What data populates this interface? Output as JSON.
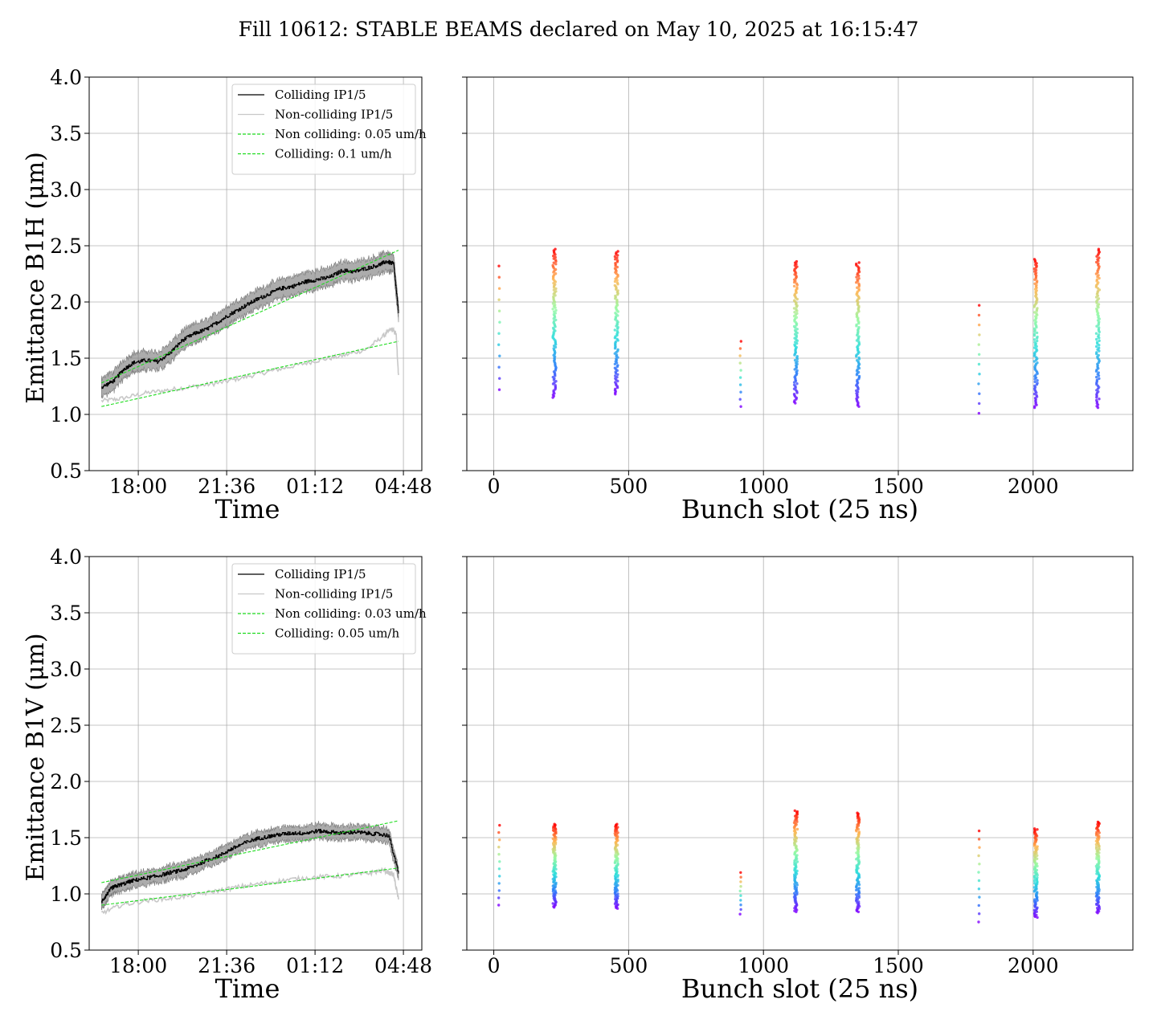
{
  "figure": {
    "title": "Fill 10612: STABLE BEAMS declared on May 10, 2025 at 16:15:47"
  },
  "colors": {
    "colliding": "#000000",
    "colliding_band": "#7f7f7f",
    "non_colliding": "#c8c8c8",
    "fit": "#1fdc1f",
    "grid": "#b0b0b0"
  },
  "chart_data": [
    {
      "id": "b1h-time",
      "type": "line",
      "xlabel": "Time",
      "ylabel": "Emittance B1H (μm)",
      "x_ticks": [
        "18:00",
        "21:36",
        "01:12",
        "04:48"
      ],
      "x_tick_hours": [
        1.2,
        4.8,
        8.4,
        12.0
      ],
      "xlim_hours": [
        -0.8,
        12.75
      ],
      "ylim": [
        0.5,
        4.0
      ],
      "y_ticks": [
        "0.5",
        "1.0",
        "1.5",
        "2.0",
        "2.5",
        "3.0",
        "3.5",
        "4.0"
      ],
      "grid": true,
      "legend_position": "upper-right",
      "legend": [
        "Colliding IP1/5",
        "Non-colliding IP1/5",
        "Non colliding: 0.05 um/h",
        "Colliding: 0.1 um/h"
      ],
      "series": [
        {
          "name": "Colliding IP1/5",
          "style": "colliding",
          "band_halfwidth": 0.08,
          "x": [
            -0.3,
            0.2,
            0.6,
            1.0,
            1.5,
            2.0,
            2.5,
            3.0,
            3.5,
            4.0,
            4.5,
            5.0,
            5.5,
            6.0,
            6.5,
            7.0,
            7.5,
            8.0,
            8.5,
            9.0,
            9.5,
            10.0,
            10.5,
            11.0,
            11.3,
            11.6,
            11.8
          ],
          "y": [
            1.24,
            1.3,
            1.4,
            1.46,
            1.48,
            1.47,
            1.55,
            1.66,
            1.72,
            1.76,
            1.83,
            1.9,
            1.96,
            2.02,
            2.07,
            2.12,
            2.14,
            2.18,
            2.2,
            2.22,
            2.28,
            2.27,
            2.3,
            2.33,
            2.36,
            2.34,
            1.9
          ]
        },
        {
          "name": "Non-colliding IP1/5",
          "style": "non_colliding",
          "x": [
            -0.3,
            0.5,
            1.5,
            2.5,
            3.5,
            4.5,
            5.5,
            6.5,
            7.5,
            8.5,
            9.5,
            10.5,
            11.2,
            11.5,
            11.7,
            11.8
          ],
          "y": [
            1.12,
            1.14,
            1.19,
            1.22,
            1.25,
            1.28,
            1.33,
            1.38,
            1.43,
            1.48,
            1.52,
            1.58,
            1.7,
            1.76,
            1.72,
            1.35
          ]
        },
        {
          "name": "Non colliding: 0.05 um/h",
          "style": "fit",
          "x": [
            -0.3,
            11.8
          ],
          "y": [
            1.07,
            1.65
          ]
        },
        {
          "name": "Colliding: 0.1 um/h",
          "style": "fit",
          "x": [
            -0.3,
            11.8
          ],
          "y": [
            1.28,
            2.46
          ]
        }
      ]
    },
    {
      "id": "b1h-bunch",
      "type": "scatter",
      "xlabel": "Bunch slot (25 ns)",
      "xlim": [
        -100,
        2370
      ],
      "ylim": [
        0.5,
        4.0
      ],
      "x_ticks": [
        0,
        500,
        1000,
        1500,
        2000
      ],
      "y_ticks": [
        0.5,
        1.0,
        1.5,
        2.0,
        2.5,
        3.0,
        3.5,
        4.0
      ],
      "grid": true,
      "color_scale": "rainbow",
      "clusters": [
        {
          "x": 20,
          "width": 4,
          "ymin": 1.22,
          "ymax": 2.32,
          "count": 12
        },
        {
          "x": 225,
          "width": 12,
          "ymin": 1.15,
          "ymax": 2.47,
          "count": 110
        },
        {
          "x": 455,
          "width": 12,
          "ymin": 1.18,
          "ymax": 2.45,
          "count": 110
        },
        {
          "x": 915,
          "width": 4,
          "ymin": 1.07,
          "ymax": 1.65,
          "count": 10
        },
        {
          "x": 1120,
          "width": 12,
          "ymin": 1.1,
          "ymax": 2.36,
          "count": 110
        },
        {
          "x": 1350,
          "width": 12,
          "ymin": 1.07,
          "ymax": 2.35,
          "count": 110
        },
        {
          "x": 1800,
          "width": 4,
          "ymin": 1.01,
          "ymax": 1.97,
          "count": 12
        },
        {
          "x": 2010,
          "width": 12,
          "ymin": 1.06,
          "ymax": 2.38,
          "count": 110
        },
        {
          "x": 2240,
          "width": 12,
          "ymin": 1.06,
          "ymax": 2.47,
          "count": 110
        }
      ]
    },
    {
      "id": "b1v-time",
      "type": "line",
      "xlabel": "Time",
      "ylabel": "Emittance B1V (μm)",
      "x_ticks": [
        "18:00",
        "21:36",
        "01:12",
        "04:48"
      ],
      "x_tick_hours": [
        1.2,
        4.8,
        8.4,
        12.0
      ],
      "xlim_hours": [
        -0.8,
        12.75
      ],
      "ylim": [
        0.5,
        4.0
      ],
      "y_ticks": [
        "0.5",
        "1.0",
        "1.5",
        "2.0",
        "2.5",
        "3.0",
        "3.5",
        "4.0"
      ],
      "grid": true,
      "legend_position": "upper-right",
      "legend": [
        "Colliding IP1/5",
        "Non-colliding IP1/5",
        "Non colliding: 0.03 um/h",
        "Colliding: 0.05 um/h"
      ],
      "series": [
        {
          "name": "Colliding IP1/5",
          "style": "colliding",
          "band_halfwidth": 0.06,
          "x": [
            -0.3,
            -0.1,
            0.1,
            0.3,
            0.6,
            1.0,
            1.5,
            2.0,
            2.5,
            3.0,
            3.5,
            4.0,
            4.5,
            5.0,
            5.5,
            6.0,
            6.5,
            7.0,
            7.5,
            8.0,
            8.5,
            9.0,
            9.5,
            10.0,
            10.5,
            11.0,
            11.4,
            11.8
          ],
          "y": [
            0.93,
            0.99,
            1.05,
            1.07,
            1.09,
            1.12,
            1.14,
            1.16,
            1.19,
            1.21,
            1.25,
            1.3,
            1.34,
            1.4,
            1.45,
            1.49,
            1.51,
            1.53,
            1.54,
            1.54,
            1.56,
            1.55,
            1.54,
            1.55,
            1.54,
            1.53,
            1.52,
            1.18
          ]
        },
        {
          "name": "Non-colliding IP1/5",
          "style": "non_colliding",
          "x": [
            -0.3,
            0.5,
            1.5,
            2.5,
            3.5,
            4.5,
            5.5,
            6.5,
            7.5,
            8.5,
            9.5,
            10.5,
            11.2,
            11.6,
            11.8
          ],
          "y": [
            0.83,
            0.9,
            0.94,
            0.96,
            0.99,
            1.03,
            1.07,
            1.1,
            1.13,
            1.15,
            1.16,
            1.18,
            1.21,
            1.17,
            0.95
          ]
        },
        {
          "name": "Non colliding: 0.03 um/h",
          "style": "fit",
          "x": [
            -0.3,
            11.8
          ],
          "y": [
            0.9,
            1.23
          ]
        },
        {
          "name": "Colliding: 0.05 um/h",
          "style": "fit",
          "x": [
            -0.3,
            11.8
          ],
          "y": [
            1.1,
            1.65
          ]
        }
      ]
    },
    {
      "id": "b1v-bunch",
      "type": "scatter",
      "xlabel": "Bunch slot (25 ns)",
      "xlim": [
        -100,
        2370
      ],
      "ylim": [
        0.5,
        4.0
      ],
      "x_ticks": [
        0,
        500,
        1000,
        1500,
        2000
      ],
      "y_ticks": [
        0.5,
        1.0,
        1.5,
        2.0,
        2.5,
        3.0,
        3.5,
        4.0
      ],
      "grid": true,
      "color_scale": "rainbow",
      "clusters": [
        {
          "x": 20,
          "width": 4,
          "ymin": 0.9,
          "ymax": 1.61,
          "count": 12
        },
        {
          "x": 225,
          "width": 12,
          "ymin": 0.88,
          "ymax": 1.62,
          "count": 110
        },
        {
          "x": 455,
          "width": 12,
          "ymin": 0.87,
          "ymax": 1.62,
          "count": 110
        },
        {
          "x": 915,
          "width": 4,
          "ymin": 0.82,
          "ymax": 1.19,
          "count": 10
        },
        {
          "x": 1120,
          "width": 12,
          "ymin": 0.84,
          "ymax": 1.74,
          "count": 110
        },
        {
          "x": 1350,
          "width": 12,
          "ymin": 0.84,
          "ymax": 1.72,
          "count": 110
        },
        {
          "x": 1800,
          "width": 4,
          "ymin": 0.75,
          "ymax": 1.56,
          "count": 12
        },
        {
          "x": 2010,
          "width": 12,
          "ymin": 0.79,
          "ymax": 1.58,
          "count": 110
        },
        {
          "x": 2240,
          "width": 12,
          "ymin": 0.83,
          "ymax": 1.64,
          "count": 110
        }
      ]
    }
  ]
}
